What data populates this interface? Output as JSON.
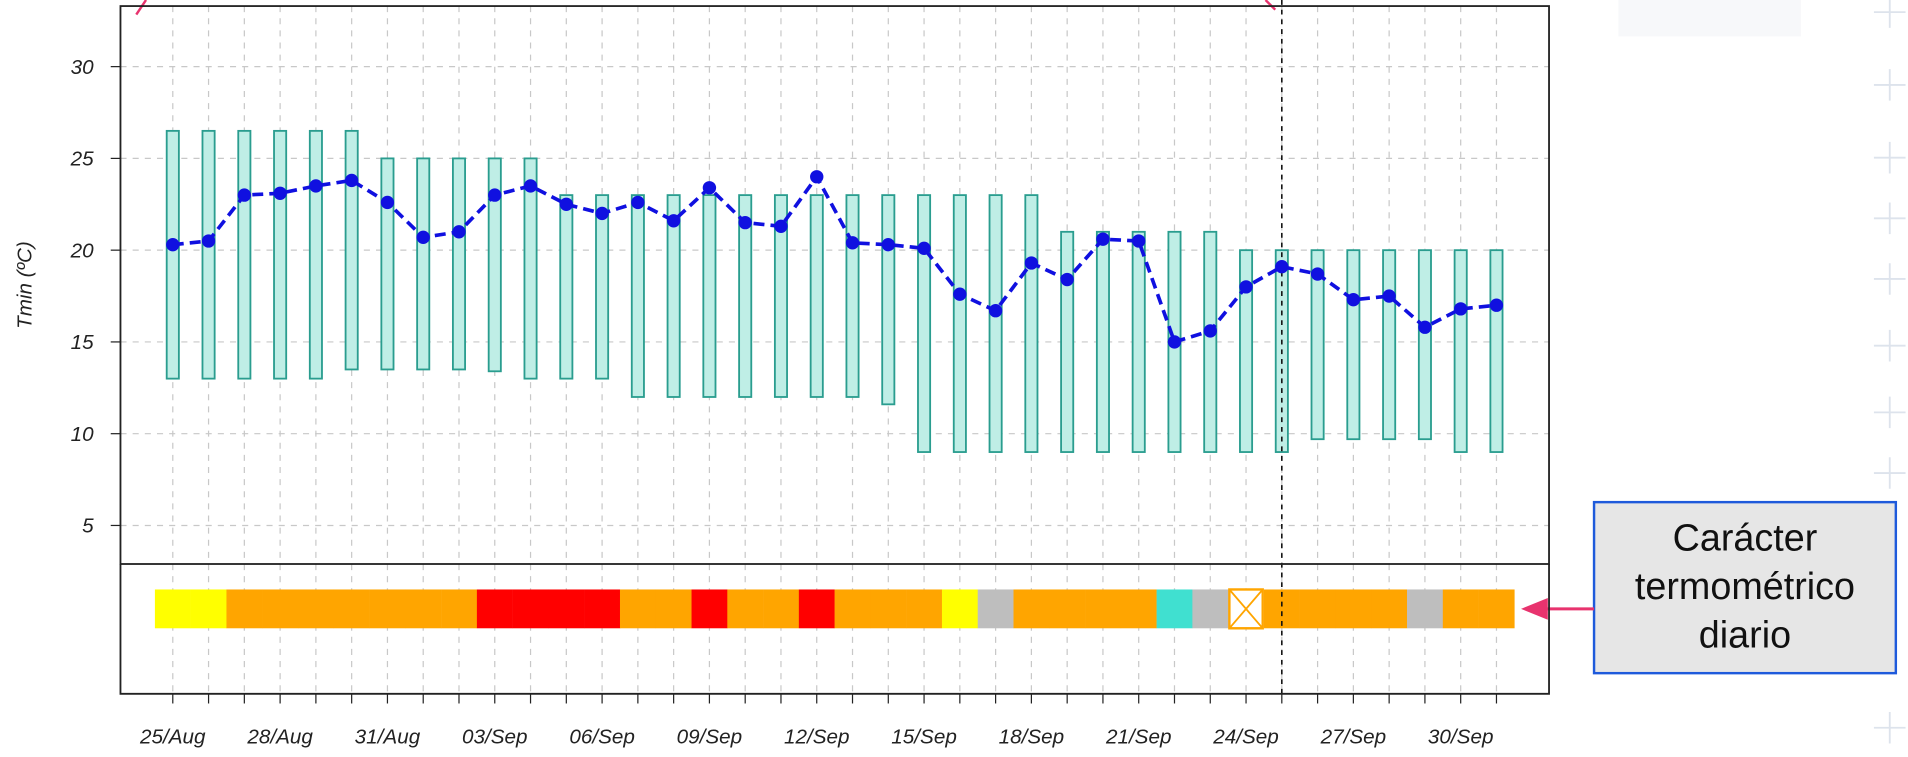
{
  "chart_data": {
    "type": "line",
    "y_label": "Tmin (ºC)",
    "categories": [
      "25/Aug",
      null,
      null,
      "28/Aug",
      null,
      null,
      "31/Aug",
      null,
      null,
      "03/Sep",
      null,
      null,
      "06/Sep",
      null,
      null,
      "09/Sep",
      null,
      null,
      "12/Sep",
      null,
      null,
      "15/Sep",
      null,
      null,
      "18/Sep",
      null,
      null,
      "21/Sep",
      null,
      null,
      "24/Sep",
      null,
      null,
      "27/Sep",
      null,
      null,
      "30/Sep",
      null
    ],
    "series": [
      {
        "color": "#1010e0",
        "values": [
          20.3,
          20.5,
          23.0,
          23.1,
          23.5,
          23.8,
          22.6,
          20.7,
          21.0,
          23.0,
          23.5,
          22.5,
          22.0,
          22.6,
          21.6,
          23.4,
          21.5,
          21.3,
          24.0,
          20.4,
          20.3,
          20.1,
          17.6,
          16.7,
          19.3,
          18.4,
          20.6,
          20.5,
          15.0,
          15.6,
          18.0,
          19.1,
          18.7,
          17.3,
          17.5,
          15.8,
          16.8,
          17.0
        ]
      }
    ],
    "ranges": {
      "color": "#2a9d8f",
      "fill": "#bfeee6",
      "low": [
        13,
        13,
        13,
        13,
        13,
        13.5,
        13.5,
        13.5,
        13.5,
        13.4,
        13,
        13,
        13,
        12,
        12,
        12,
        12,
        12,
        12,
        12,
        11.6,
        9,
        9,
        9,
        9,
        9,
        9,
        9,
        9,
        9,
        9,
        9,
        9.7,
        9.7,
        9.7,
        9.7,
        9,
        9
      ],
      "high": [
        26.5,
        26.5,
        26.5,
        26.5,
        26.5,
        26.5,
        25,
        25,
        25,
        25,
        25,
        23,
        23,
        23,
        23,
        23,
        23,
        23,
        23,
        23,
        23,
        23,
        23,
        23,
        23,
        21,
        21,
        21,
        21,
        21,
        20,
        20,
        20,
        20,
        20,
        20,
        20,
        20
      ]
    },
    "ylim": [
      2.9,
      33.3
    ],
    "yticks": [
      5,
      10,
      15,
      20,
      25,
      30
    ],
    "grid": true,
    "reference_line": {
      "x_index": 31
    },
    "strip_colors": [
      "#ffff00",
      "#ffff00",
      "#ffa500",
      "#ffa500",
      "#ffa500",
      "#ffa500",
      "#ffa500",
      "#ffa500",
      "#ffa500",
      "#ff0000",
      "#ff0000",
      "#ff0000",
      "#ff0000",
      "#ffa500",
      "#ffa500",
      "#ff0000",
      "#ffa500",
      "#ffa500",
      "#ff0000",
      "#ffa500",
      "#ffa500",
      "#ffa500",
      "#ffff00",
      "#bebebe",
      "#ffa500",
      "#ffa500",
      "#ffa500",
      "#ffa500",
      "#40e0d0",
      "#bebebe",
      "#ffffff",
      "#ffa500",
      "#ffa500",
      "#ffa500",
      "#ffa500",
      "#bebebe",
      "#ffa500",
      "#ffa500"
    ],
    "strip_missing_index": 30,
    "annotation": [
      "Carácter",
      "termométrico",
      "diario"
    ]
  }
}
